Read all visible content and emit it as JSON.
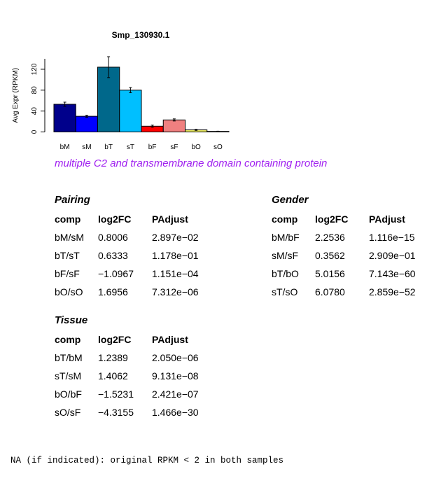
{
  "chart_data": {
    "type": "bar",
    "title": "Smp_130930.1",
    "ylabel": "Avg Expr (RPKM)",
    "xlabel": "",
    "ylim": [
      0,
      140
    ],
    "yticks": [
      0,
      40,
      80,
      120
    ],
    "categories": [
      "bM",
      "sM",
      "bT",
      "sT",
      "bF",
      "sF",
      "bO",
      "sO"
    ],
    "values": [
      53,
      30,
      124,
      80,
      11,
      23,
      4,
      1
    ],
    "errors": [
      4,
      2,
      20,
      5,
      2,
      2,
      1,
      0.5
    ],
    "colors": [
      "#00008b",
      "#0000ff",
      "#00688b",
      "#00bfff",
      "#ff0000",
      "#f08080",
      "#eeee66",
      "#ffffff"
    ],
    "grid": false,
    "legend": "none"
  },
  "subtitle": "multiple C2 and transmembrane domain containing protein",
  "pairing": {
    "title": "Pairing",
    "headers": [
      "comp",
      "log2FC",
      "PAdjust"
    ],
    "rows": [
      [
        "bM/sM",
        "0.8006",
        "2.897e−02"
      ],
      [
        "bT/sT",
        "0.6333",
        "1.178e−01"
      ],
      [
        "bF/sF",
        "−1.0967",
        "1.151e−04"
      ],
      [
        "bO/sO",
        "1.6956",
        "7.312e−06"
      ]
    ]
  },
  "gender": {
    "title": "Gender",
    "headers": [
      "comp",
      "log2FC",
      "PAdjust"
    ],
    "rows": [
      [
        "bM/bF",
        "2.2536",
        "1.116e−15"
      ],
      [
        "sM/sF",
        "0.3562",
        "2.909e−01"
      ],
      [
        "bT/bO",
        "5.0156",
        "7.143e−60"
      ],
      [
        "sT/sO",
        "6.0780",
        "2.859e−52"
      ]
    ]
  },
  "tissue": {
    "title": "Tissue",
    "headers": [
      "comp",
      "log2FC",
      "PAdjust"
    ],
    "rows": [
      [
        "bT/bM",
        "1.2389",
        "2.050e−06"
      ],
      [
        "sT/sM",
        "1.4062",
        "9.131e−08"
      ],
      [
        "bO/bF",
        "−1.5231",
        "2.421e−07"
      ],
      [
        "sO/sF",
        "−4.3155",
        "1.466e−30"
      ]
    ]
  },
  "footnote": "NA (if indicated): original RPKM < 2 in both samples"
}
